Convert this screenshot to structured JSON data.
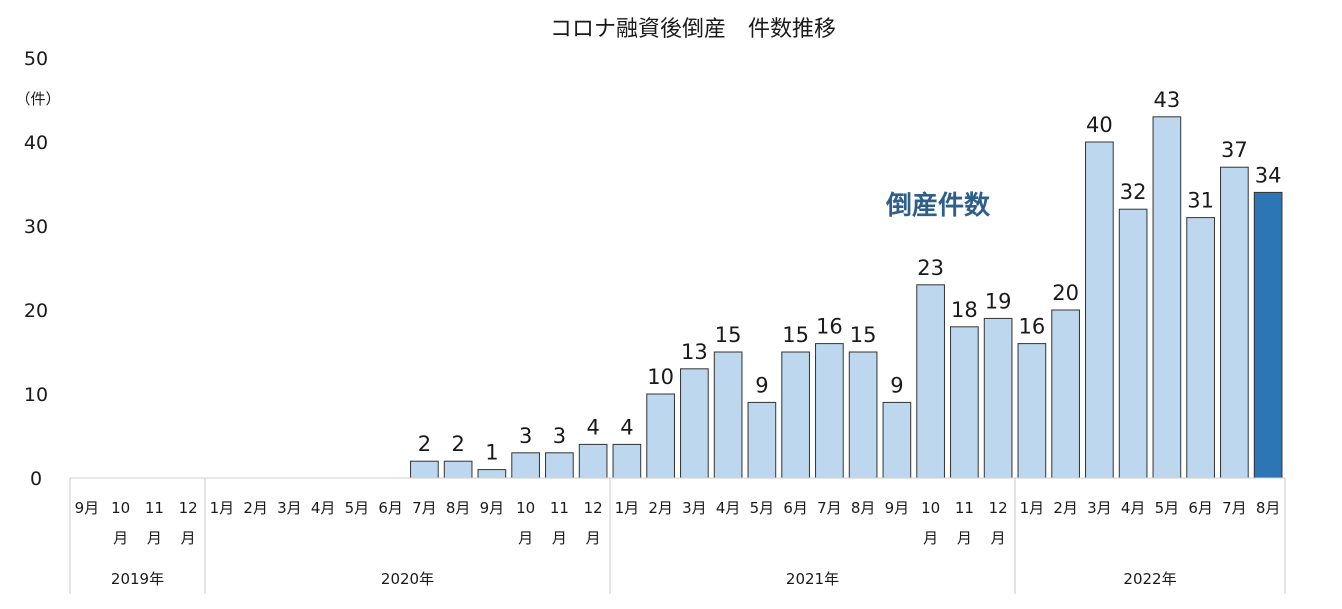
{
  "chart_data": {
    "type": "bar",
    "title": "コロナ融資後倒産　件数推移",
    "ylabel": "（件）",
    "series_label": "倒産件数",
    "ylim": [
      0,
      50
    ],
    "yticks": [
      "0",
      "10",
      "20",
      "30",
      "40",
      "50"
    ],
    "yticks_values": [
      0,
      10,
      20,
      30,
      40,
      50
    ],
    "colors": {
      "bar": "#bdd7ee",
      "highlight": "#2e75b6",
      "stroke": "#333333"
    },
    "categories": [
      {
        "label": [
          "9月"
        ],
        "value": null,
        "year": "2019年"
      },
      {
        "label": [
          "10",
          "月"
        ],
        "value": null,
        "year": "2019年"
      },
      {
        "label": [
          "11",
          "月"
        ],
        "value": null,
        "year": "2019年"
      },
      {
        "label": [
          "12",
          "月"
        ],
        "value": null,
        "year": "2019年"
      },
      {
        "label": [
          "1月"
        ],
        "value": null,
        "year": "2020年"
      },
      {
        "label": [
          "2月"
        ],
        "value": null,
        "year": "2020年"
      },
      {
        "label": [
          "3月"
        ],
        "value": null,
        "year": "2020年"
      },
      {
        "label": [
          "4月"
        ],
        "value": null,
        "year": "2020年"
      },
      {
        "label": [
          "5月"
        ],
        "value": null,
        "year": "2020年"
      },
      {
        "label": [
          "6月"
        ],
        "value": null,
        "year": "2020年"
      },
      {
        "label": [
          "7月"
        ],
        "value": 2,
        "year": "2020年"
      },
      {
        "label": [
          "8月"
        ],
        "value": 2,
        "year": "2020年"
      },
      {
        "label": [
          "9月"
        ],
        "value": 1,
        "year": "2020年"
      },
      {
        "label": [
          "10",
          "月"
        ],
        "value": 3,
        "year": "2020年"
      },
      {
        "label": [
          "11",
          "月"
        ],
        "value": 3,
        "year": "2020年"
      },
      {
        "label": [
          "12",
          "月"
        ],
        "value": 4,
        "year": "2020年"
      },
      {
        "label": [
          "1月"
        ],
        "value": 4,
        "year": "2021年"
      },
      {
        "label": [
          "2月"
        ],
        "value": 10,
        "year": "2021年"
      },
      {
        "label": [
          "3月"
        ],
        "value": 13,
        "year": "2021年"
      },
      {
        "label": [
          "4月"
        ],
        "value": 15,
        "year": "2021年"
      },
      {
        "label": [
          "5月"
        ],
        "value": 9,
        "year": "2021年"
      },
      {
        "label": [
          "6月"
        ],
        "value": 15,
        "year": "2021年"
      },
      {
        "label": [
          "7月"
        ],
        "value": 16,
        "year": "2021年"
      },
      {
        "label": [
          "8月"
        ],
        "value": 15,
        "year": "2021年"
      },
      {
        "label": [
          "9月"
        ],
        "value": 9,
        "year": "2021年"
      },
      {
        "label": [
          "10",
          "月"
        ],
        "value": 23,
        "year": "2021年"
      },
      {
        "label": [
          "11",
          "月"
        ],
        "value": 18,
        "year": "2021年"
      },
      {
        "label": [
          "12",
          "月"
        ],
        "value": 19,
        "year": "2021年"
      },
      {
        "label": [
          "1月"
        ],
        "value": 16,
        "year": "2022年"
      },
      {
        "label": [
          "2月"
        ],
        "value": 20,
        "year": "2022年"
      },
      {
        "label": [
          "3月"
        ],
        "value": 40,
        "year": "2022年"
      },
      {
        "label": [
          "4月"
        ],
        "value": 32,
        "year": "2022年"
      },
      {
        "label": [
          "5月"
        ],
        "value": 43,
        "year": "2022年"
      },
      {
        "label": [
          "6月"
        ],
        "value": 31,
        "year": "2022年"
      },
      {
        "label": [
          "7月"
        ],
        "value": 37,
        "year": "2022年"
      },
      {
        "label": [
          "8月"
        ],
        "value": 34,
        "year": "2022年",
        "highlight": true
      }
    ],
    "years": [
      "2019年",
      "2020年",
      "2021年",
      "2022年"
    ]
  }
}
